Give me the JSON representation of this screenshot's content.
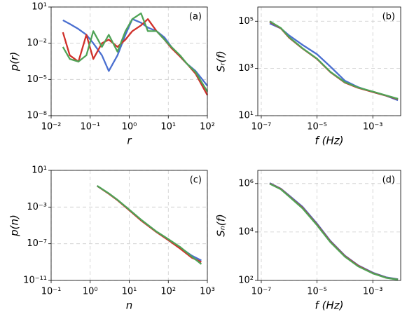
{
  "chart_data": [
    {
      "type": "line",
      "annotation": "(a)",
      "x_label": "r",
      "y_label": "p(r)",
      "xscale": "log",
      "yscale": "log",
      "grid": true,
      "xlim": [
        0.01,
        100
      ],
      "ylim": [
        1e-08,
        10
      ],
      "xticks": [
        {
          "value": 0.01,
          "label": "10⁻²"
        },
        {
          "value": 0.1,
          "label": "10⁻¹"
        },
        {
          "value": 1,
          "label": "10⁰"
        },
        {
          "value": 10,
          "label": "10¹"
        },
        {
          "value": 100,
          "label": "10²"
        }
      ],
      "yticks": [
        {
          "value": 1e-08,
          "label": "10⁻⁸"
        },
        {
          "value": 1e-05,
          "label": "10⁻⁵"
        },
        {
          "value": 0.01,
          "label": "10⁻²"
        },
        {
          "value": 10,
          "label": "10¹"
        }
      ],
      "x": [
        0.02,
        0.03,
        0.05,
        0.08,
        0.12,
        0.2,
        0.3,
        0.5,
        0.8,
        1.2,
        2,
        3,
        5,
        8,
        12,
        20,
        30,
        50,
        100
      ],
      "series": [
        {
          "color": "#4a6fd0",
          "values": [
            0.8,
            0.4,
            0.15,
            0.05,
            0.01,
            0.001,
            5e-05,
            0.001,
            0.05,
            1,
            0.5,
            0.2,
            0.1,
            0.03,
            0.005,
            0.0008,
            0.0002,
            5e-05,
            3e-06
          ]
        },
        {
          "color": "#d0302a",
          "values": [
            0.08,
            0.001,
            0.0003,
            0.05,
            0.0005,
            0.01,
            0.02,
            0.005,
            0.02,
            0.1,
            0.3,
            1,
            0.1,
            0.02,
            0.004,
            0.0008,
            0.0002,
            3e-05,
            5e-07
          ]
        },
        {
          "color": "#4fa356",
          "values": [
            0.005,
            0.0005,
            0.0003,
            0.001,
            0.1,
            0.005,
            0.05,
            0.002,
            0.1,
            1,
            3,
            0.1,
            0.1,
            0.02,
            0.005,
            0.001,
            0.0002,
            4e-05,
            1e-06
          ]
        }
      ]
    },
    {
      "type": "line",
      "annotation": "(b)",
      "x_label": "f (Hz)",
      "y_label": "Sᵣ(f)",
      "xscale": "log",
      "yscale": "log",
      "grid": true,
      "xlim": [
        7.5e-08,
        0.01
      ],
      "ylim": [
        10,
        400000
      ],
      "xticks": [
        {
          "value": 1e-07,
          "label": "10⁻⁷"
        },
        {
          "value": 1e-05,
          "label": "10⁻⁵"
        },
        {
          "value": 0.001,
          "label": "10⁻³"
        }
      ],
      "yticks": [
        {
          "value": 10,
          "label": "10¹"
        },
        {
          "value": 1000,
          "label": "10³"
        },
        {
          "value": 100000,
          "label": "10⁵"
        }
      ],
      "x": [
        2e-07,
        5e-07,
        1e-06,
        3e-06,
        1e-05,
        3e-05,
        0.0001,
        0.0003,
        0.001,
        0.003,
        0.008
      ],
      "series": [
        {
          "color": "#4a6fd0",
          "values": [
            80000,
            50000,
            25000,
            10000,
            4000,
            1200,
            300,
            160,
            100,
            70,
            45
          ]
        },
        {
          "color": "#d0302a",
          "values": [
            95000,
            50000,
            20000,
            7000,
            2500,
            700,
            250,
            150,
            100,
            70,
            50
          ]
        },
        {
          "color": "#4fa356",
          "values": [
            100000,
            52000,
            21000,
            7200,
            2600,
            720,
            260,
            155,
            105,
            72,
            52
          ]
        }
      ]
    },
    {
      "type": "line",
      "annotation": "(c)",
      "x_label": "n",
      "y_label": "p(n)",
      "xscale": "log",
      "yscale": "log",
      "grid": true,
      "xlim": [
        0.1,
        1000
      ],
      "ylim": [
        1e-11,
        10
      ],
      "xticks": [
        {
          "value": 0.1,
          "label": "10⁻¹"
        },
        {
          "value": 1,
          "label": "10⁰"
        },
        {
          "value": 10,
          "label": "10¹"
        },
        {
          "value": 100,
          "label": "10²"
        },
        {
          "value": 1000,
          "label": "10³"
        }
      ],
      "yticks": [
        {
          "value": 1e-11,
          "label": "10⁻¹¹"
        },
        {
          "value": 1e-07,
          "label": "10⁻⁷"
        },
        {
          "value": 0.001,
          "label": "10⁻³"
        },
        {
          "value": 10,
          "label": "10¹"
        }
      ],
      "x": [
        1.5,
        3,
        5,
        10,
        20,
        50,
        100,
        200,
        400,
        700
      ],
      "series": [
        {
          "color": "#4a6fd0",
          "values": [
            0.2,
            0.03,
            0.006,
            0.0005,
            4e-05,
            2e-06,
            3e-07,
            4e-08,
            5e-09,
            1.5e-09
          ]
        },
        {
          "color": "#d0302a",
          "values": [
            0.2,
            0.028,
            0.0055,
            0.00045,
            3.5e-05,
            1.8e-06,
            2.5e-07,
            3e-08,
            3e-09,
            1e-09
          ]
        },
        {
          "color": "#4fa356",
          "values": [
            0.21,
            0.031,
            0.0062,
            0.00052,
            4.2e-05,
            2.1e-06,
            3.2e-07,
            4.5e-08,
            4e-09,
            6e-10
          ]
        }
      ]
    },
    {
      "type": "line",
      "annotation": "(d)",
      "x_label": "f (Hz)",
      "y_label": "Sₙ(f)",
      "xscale": "log",
      "yscale": "log",
      "grid": true,
      "xlim": [
        7.5e-08,
        0.01
      ],
      "ylim": [
        100,
        3500000
      ],
      "xticks": [
        {
          "value": 1e-07,
          "label": "10⁻⁷"
        },
        {
          "value": 1e-05,
          "label": "10⁻⁵"
        },
        {
          "value": 0.001,
          "label": "10⁻³"
        }
      ],
      "yticks": [
        {
          "value": 100,
          "label": "10²"
        },
        {
          "value": 10000,
          "label": "10⁴"
        },
        {
          "value": 1000000,
          "label": "10⁶"
        }
      ],
      "x": [
        2e-07,
        5e-07,
        1e-06,
        3e-06,
        1e-05,
        3e-05,
        0.0001,
        0.0003,
        0.001,
        0.003,
        0.008
      ],
      "series": [
        {
          "color": "#4a6fd0",
          "values": [
            1050000,
            620000,
            320000,
            110000,
            22000,
            4300,
            1050,
            420,
            210,
            135,
            112
          ]
        },
        {
          "color": "#d0302a",
          "values": [
            1000000,
            600000,
            300000,
            100000,
            20000,
            4000,
            1000,
            400,
            200,
            130,
            110
          ]
        },
        {
          "color": "#4fa356",
          "values": [
            980000,
            580000,
            290000,
            95000,
            19000,
            3800,
            950,
            380,
            195,
            128,
            108
          ]
        }
      ]
    }
  ]
}
